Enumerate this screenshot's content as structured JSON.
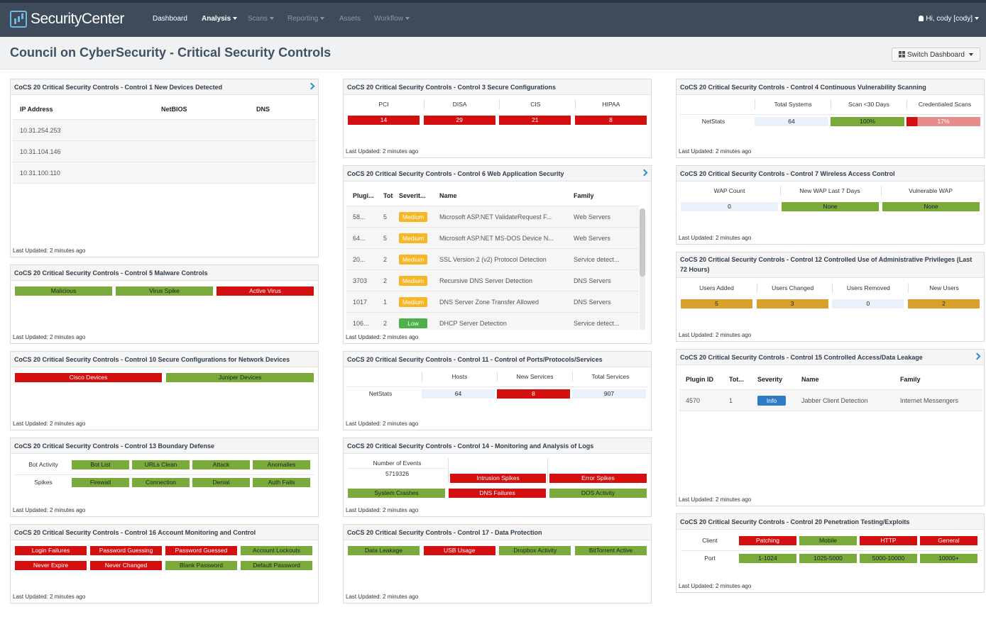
{
  "app": {
    "name": "SecurityCenter"
  },
  "nav": {
    "dashboard": "Dashboard",
    "analysis": "Analysis",
    "scans": "Scans",
    "reporting": "Reporting",
    "assets": "Assets",
    "workflow": "Workflow",
    "user": "Hi, cody [cody]"
  },
  "page": {
    "title": "Council on CyberSecurity - Critical Security Controls",
    "switch": "Switch Dashboard"
  },
  "last_updated": "Last Updated: 2 minutes ago",
  "colors": {
    "red": "#d40f0f",
    "green": "#7aab3a",
    "yellow": "#d9a12c",
    "blue": "#e9f1fb"
  },
  "c1": {
    "title": "CoCS 20 Critical Security Controls - Control 1 New Devices Detected",
    "cols": [
      "IP Address",
      "NetBIOS",
      "DNS"
    ],
    "rows": [
      "10.31.254.253",
      "10.31.104.146",
      "10.31.100.110"
    ]
  },
  "c3": {
    "title": "CoCS 20 Critical Security Controls - Control 3 Secure Configurations",
    "cols": [
      "PCI",
      "DISA",
      "CIS",
      "HIPAA"
    ],
    "vals": [
      "14",
      "29",
      "21",
      "8"
    ]
  },
  "c4": {
    "title": "CoCS 20 Critical Security Controls - Control 4 Continuous Vulnerability Scanning",
    "cols": [
      "Total Systems",
      "Scan <30 Days",
      "Credentialed Scans"
    ],
    "row": "NetStats",
    "vals": [
      "64",
      "100%",
      "17%"
    ]
  },
  "c5": {
    "title": "CoCS 20 Critical Security Controls - Control 5 Malware Controls",
    "items": [
      "Malicious",
      "Virus Spike",
      "Active Virus"
    ]
  },
  "c6": {
    "title": "CoCS 20 Critical Security Controls - Control 6 Web Application Security",
    "cols": [
      "Plugi...",
      "Tot",
      "Severit...",
      "Name",
      "Family"
    ],
    "rows": [
      [
        "58...",
        "5",
        "Medium",
        "Microsoft ASP.NET ValidateRequest F...",
        "Web Servers"
      ],
      [
        "64...",
        "5",
        "Medium",
        "Microsoft ASP.NET MS-DOS Device N...",
        "Web Servers"
      ],
      [
        "20...",
        "2",
        "Medium",
        "SSL Version 2 (v2) Protocol Detection",
        "Service detect..."
      ],
      [
        "3703",
        "2",
        "Medium",
        "Recursive DNS Server Detection",
        "DNS Servers"
      ],
      [
        "1017",
        "1",
        "Medium",
        "DNS Server Zone Transfer Allowed",
        "DNS Servers"
      ],
      [
        "106...",
        "2",
        "Low",
        "DHCP Server Detection",
        "Service detect..."
      ]
    ]
  },
  "c7": {
    "title": "CoCS 20 Critical Security Controls - Control 7 Wireless Access Control",
    "cols": [
      "WAP Count",
      "New WAP Last 7 Days",
      "Vulnerable WAP"
    ],
    "vals": [
      "0",
      "None",
      "None"
    ]
  },
  "c10": {
    "title": "CoCS 20 Critical Security Controls - Control 10 Secure Configurations for Network Devices",
    "items": [
      "Cisco Devices",
      "Juniper Devices"
    ]
  },
  "c11": {
    "title": "CoCS 20 Critical Security Controls - Control 11 - Control of Ports/Protocols/Services",
    "cols": [
      "Hosts",
      "New Services",
      "Total Services"
    ],
    "row": "NetStats",
    "vals": [
      "64",
      "8",
      "907"
    ]
  },
  "c12": {
    "title": "CoCS 20 Critical Security Controls - Control 12 Controlled Use of Administrative Privileges (Last 72 Hours)",
    "cols": [
      "Users Added",
      "Users Changed",
      "Users Removed",
      "New Users"
    ],
    "vals": [
      "5",
      "3",
      "0",
      "2"
    ]
  },
  "c13": {
    "title": "CoCS 20 Critical Security Controls - Control 13 Boundary Defense",
    "rows": [
      {
        "label": "Bot Activity",
        "items": [
          "Bot List",
          "URLs Clean",
          "Attack",
          "Anomalies"
        ]
      },
      {
        "label": "Spikes",
        "items": [
          "Firewall",
          "Connection",
          "Denial",
          "Auth Fails"
        ]
      }
    ]
  },
  "c14": {
    "title": "CoCS 20 Critical Security Controls - Control 14 - Monitoring and Analysis of Logs",
    "events_label": "Number of Events",
    "events": "5719326",
    "items": [
      "Intrusion Spikes",
      "Error Spikes",
      "System Crashes",
      "DNS Failures",
      "DOS Activity"
    ]
  },
  "c15": {
    "title": "CoCS 20 Critical Security Controls - Control 15 Controlled Access/Data Leakage",
    "cols": [
      "Plugin ID",
      "Tot...",
      "Severity",
      "Name",
      "Family"
    ],
    "row": [
      "4570",
      "1",
      "Info",
      "Jabber Client Detection",
      "Internet Messengers"
    ]
  },
  "c16": {
    "title": "CoCS 20 Critical Security Controls - Control 16 Account Monitoring and Control",
    "items": [
      "Login Failures",
      "Password Guessing",
      "Password Guessed",
      "Account Lockouts",
      "Never Expire",
      "Never Changed",
      "Blank Password",
      "Default Password"
    ]
  },
  "c17": {
    "title": "CoCS 20 Critical Security Controls - Control 17 - Data Protection",
    "items": [
      "Data Leakage",
      "USB Usage",
      "Dropbox Activity",
      "BitTorrent Active"
    ]
  },
  "c20": {
    "title": "CoCS 20 Critical Security Controls - Control 20 Penetration Testing/Exploits",
    "rows": [
      {
        "label": "Client",
        "items": [
          "Patching",
          "Mobile",
          "HTTP",
          "General"
        ]
      },
      {
        "label": "Port",
        "items": [
          "1-1024",
          "1025-5000",
          "5000-10000",
          "10000+"
        ]
      }
    ]
  }
}
